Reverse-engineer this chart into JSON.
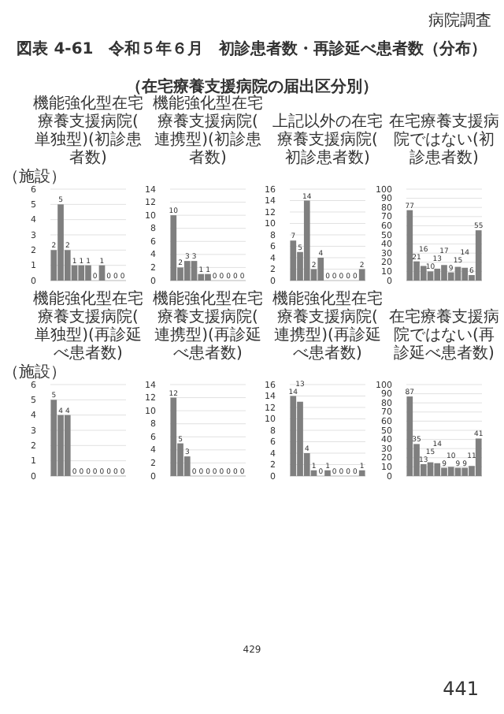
{
  "chart_data": [
    {
      "type": "other",
      "title": "図表 4-61　令和５年６月　初診患者数・再診延べ患者数（分布）",
      "subtitle": "（在宅療養支援病院の届出区分別）",
      "annotations": [
        "病院調査",
        "429",
        "441"
      ]
    },
    {
      "type": "bar",
      "title": "機能強化型在宅療養支援病院(単独型)(初診患者数)",
      "ylabel": "（施設）",
      "categories": [
        null,
        null,
        null,
        null,
        null,
        null,
        null,
        null,
        null,
        null,
        null
      ],
      "values": [
        2,
        5,
        2,
        1,
        1,
        1,
        0,
        1,
        0,
        0,
        0
      ],
      "color": "#7f7f7f",
      "ylim": [
        0,
        6
      ],
      "yticks": [
        0,
        1,
        2,
        3,
        4,
        5,
        6
      ],
      "grid": "y",
      "data_labels": true,
      "tick_labels": "y"
    },
    {
      "type": "bar",
      "title": "機能強化型在宅療養支援病院(連携型)(初診患者数)",
      "categories": [
        null,
        null,
        null,
        null,
        null,
        null,
        null,
        null,
        null,
        null,
        null
      ],
      "values": [
        10,
        2,
        3,
        3,
        1,
        1,
        0,
        0,
        0,
        0,
        0
      ],
      "color": "#7f7f7f",
      "ylim": [
        0,
        14
      ],
      "yticks": [
        0,
        2,
        4,
        6,
        8,
        10,
        12,
        14
      ],
      "grid": "y",
      "data_labels": true,
      "tick_labels": "y"
    },
    {
      "type": "bar",
      "title": "上記以外の在宅療養支援病院(初診患者数)",
      "categories": [
        null,
        null,
        null,
        null,
        null,
        null,
        null,
        null,
        null,
        null,
        null
      ],
      "values": [
        7,
        5,
        14,
        2,
        4,
        0,
        0,
        0,
        0,
        0,
        2
      ],
      "color": "#7f7f7f",
      "ylim": [
        0,
        16
      ],
      "yticks": [
        0,
        2,
        4,
        6,
        8,
        10,
        12,
        14,
        16
      ],
      "grid": "y",
      "data_labels": true,
      "tick_labels": "y"
    },
    {
      "type": "bar",
      "title": "在宅療養支援病院ではない(初診患者数)",
      "categories": [
        null,
        null,
        null,
        null,
        null,
        null,
        null,
        null,
        null,
        null,
        null
      ],
      "values": [
        77,
        21,
        16,
        10,
        13,
        17,
        9,
        15,
        14,
        6,
        55
      ],
      "color": "#7f7f7f",
      "ylim": [
        0,
        100
      ],
      "yticks": [
        0,
        10,
        20,
        30,
        40,
        50,
        60,
        70,
        80,
        90,
        100
      ],
      "grid": "y",
      "data_labels": true,
      "tick_labels": "y"
    },
    {
      "type": "bar",
      "title": "機能強化型在宅療養支援病院(単独型)(再診延べ患者数)",
      "ylabel": "（施設）",
      "categories": [
        null,
        null,
        null,
        null,
        null,
        null,
        null,
        null,
        null,
        null,
        null
      ],
      "values": [
        5,
        4,
        4,
        0,
        0,
        0,
        0,
        0,
        0,
        0,
        0
      ],
      "color": "#7f7f7f",
      "ylim": [
        0,
        6
      ],
      "yticks": [
        0,
        1,
        2,
        3,
        4,
        5,
        6
      ],
      "grid": "y",
      "data_labels": true,
      "tick_labels": "y"
    },
    {
      "type": "bar",
      "title": "機能強化型在宅療養支援病院(連携型)(再診延べ患者数)",
      "categories": [
        null,
        null,
        null,
        null,
        null,
        null,
        null,
        null,
        null,
        null,
        null
      ],
      "values": [
        12,
        5,
        3,
        0,
        0,
        0,
        0,
        0,
        0,
        0,
        0
      ],
      "color": "#7f7f7f",
      "ylim": [
        0,
        14
      ],
      "yticks": [
        0,
        2,
        4,
        6,
        8,
        10,
        12,
        14
      ],
      "grid": "y",
      "data_labels": true,
      "tick_labels": "y"
    },
    {
      "type": "bar",
      "title": "機能強化型在宅療養支援病院(連携型)(再診延べ患者数)",
      "categories": [
        null,
        null,
        null,
        null,
        null,
        null,
        null,
        null,
        null,
        null,
        null
      ],
      "values": [
        14,
        13,
        4,
        1,
        0,
        1,
        0,
        0,
        0,
        0,
        1
      ],
      "color": "#7f7f7f",
      "ylim": [
        0,
        16
      ],
      "yticks": [
        0,
        2,
        4,
        6,
        8,
        10,
        12,
        14,
        16
      ],
      "grid": "y",
      "data_labels": true,
      "tick_labels": "y"
    },
    {
      "type": "bar",
      "title": "在宅療養支援病院ではない(再診延べ患者数)",
      "categories": [
        null,
        null,
        null,
        null,
        null,
        null,
        null,
        null,
        null,
        null,
        null
      ],
      "values": [
        87,
        35,
        13,
        15,
        14,
        9,
        10,
        9,
        9,
        11,
        41
      ],
      "color": "#7f7f7f",
      "ylim": [
        0,
        100
      ],
      "yticks": [
        0,
        10,
        20,
        30,
        40,
        50,
        60,
        70,
        80,
        90,
        100
      ],
      "grid": "y",
      "data_labels": true,
      "tick_labels": "y"
    }
  ]
}
